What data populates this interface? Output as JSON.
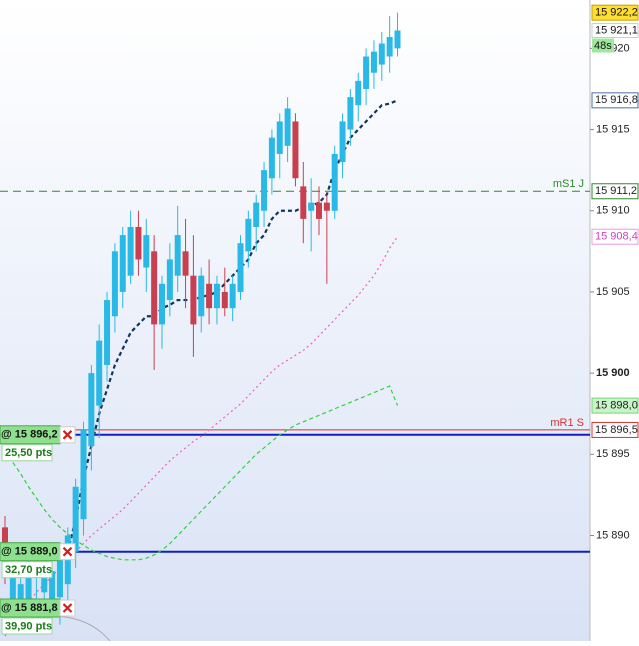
{
  "chart_data": {
    "type": "candlestick",
    "ylim": [
      15883.5,
      15922.98
    ],
    "yticks": [
      {
        "value": 15890,
        "label": "15 890"
      },
      {
        "value": 15895,
        "label": "15 895"
      },
      {
        "value": 15900,
        "label": "15 900"
      },
      {
        "value": 15905,
        "label": "15 905"
      },
      {
        "value": 15910,
        "label": "15 910"
      },
      {
        "value": 15915,
        "label": "15 915"
      },
      {
        "value": 15920,
        "label": "15 920"
      }
    ],
    "up_color": "#2ab8e6",
    "down_color": "#c8404f",
    "open": [
      15890.5,
      15886,
      15885.5,
      15886,
      15887.5,
      15886.5,
      15886,
      15886.2,
      15887,
      15889,
      15891,
      15895.5,
      15898,
      15900.5,
      15903.5,
      15905,
      15906,
      15909,
      15906.5,
      15907.5,
      15903,
      15904.5,
      15906,
      15907.5,
      15906,
      15903.5,
      15905.5,
      15904,
      15905,
      15904,
      15905,
      15907.5,
      15909,
      15910,
      15912,
      15913.5,
      15914,
      15915.5,
      15911.5,
      15910,
      15910.5,
      15910.5,
      15910,
      15913,
      15915,
      15916.5,
      15917.5,
      15918.5,
      15919,
      15919.5,
      15920
    ],
    "high": [
      15891.2,
      15888.5,
      15888,
      15889,
      15889.5,
      15889,
      15888.5,
      15889.2,
      15890.5,
      15893.5,
      15897,
      15900.5,
      15903,
      15905,
      15908,
      15909,
      15910,
      15910,
      15909.5,
      15908.5,
      15906,
      15908,
      15910.3,
      15909.5,
      15908.5,
      15906.5,
      15907,
      15906,
      15906.5,
      15906,
      15908.5,
      15910,
      15911,
      15913,
      15915,
      15916,
      15917,
      15916,
      15913,
      15912,
      15911.5,
      15911,
      15914,
      15916,
      15917.5,
      15918.5,
      15920,
      15920.5,
      15921,
      15922,
      15922.2
    ],
    "low": [
      15887,
      15884.5,
      15884,
      15884.5,
      15885,
      15885.5,
      15884.8,
      15884.5,
      15886,
      15888,
      15890,
      15894,
      15896,
      15899.5,
      15902.5,
      15904,
      15905.5,
      15906,
      15905,
      15900.2,
      15901.5,
      15903.5,
      15905,
      15904,
      15901,
      15902.5,
      15903,
      15903,
      15903.5,
      15903.2,
      15904.5,
      15906.5,
      15907.5,
      15909,
      15911,
      15912,
      15913,
      15911.5,
      15908,
      15907.5,
      15908.5,
      15905.5,
      15909.5,
      15912,
      15914,
      15915.5,
      15916.5,
      15917.5,
      15918,
      15918.5,
      15919.5
    ],
    "close": [
      15888,
      15887.5,
      15887,
      15888.5,
      15888.8,
      15888.5,
      15887.8,
      15888.6,
      15890,
      15893,
      15896.5,
      15900,
      15902,
      15904.5,
      15907.5,
      15908.5,
      15909,
      15907,
      15908.5,
      15903,
      15905.5,
      15907,
      15908.5,
      15906,
      15903,
      15906,
      15904,
      15905.5,
      15904,
      15905.5,
      15908,
      15909.5,
      15910.5,
      15912.5,
      15914.5,
      15915.5,
      15916.3,
      15912,
      15909.5,
      15910.5,
      15909.5,
      15910,
      15913.5,
      15915.5,
      15917,
      15918,
      15919.5,
      15919.8,
      15920.3,
      15920.7,
      15921.1
    ],
    "moving_averages": [
      {
        "color": "#10365e",
        "dash": "4 3",
        "width": 2.2,
        "last_label": "15 916,8",
        "values": [
          null,
          null,
          null,
          null,
          null,
          null,
          null,
          null,
          15889,
          15891,
          15893.5,
          15895.5,
          15897.5,
          15899,
          15900.5,
          15901.5,
          15902.5,
          15903,
          15903.5,
          15903.5,
          15904,
          15904.2,
          15904.5,
          15904.5,
          15904.5,
          15904.7,
          15904.8,
          15905,
          15905.5,
          15906,
          15906.5,
          15907,
          15908,
          15908.5,
          15909.5,
          15910,
          15910,
          15910,
          15910.2,
          15910.3,
          15910.5,
          15911,
          15912.5,
          15913.5,
          15914.5,
          15915,
          15915.5,
          15916,
          15916.5,
          15916.6,
          15916.8
        ]
      },
      {
        "color": "#f060c0",
        "dash": "2 3",
        "width": 1.2,
        "last_label": "15 908,4",
        "values": [
          15883.8,
          15884.5,
          15885.2,
          15885.9,
          15886.5,
          15887,
          15887.5,
          15888,
          15888.5,
          15889,
          15889.5,
          15890,
          15890.4,
          15890.8,
          15891.2,
          15891.6,
          15892.1,
          15892.6,
          15893.1,
          15893.6,
          15894.1,
          15894.6,
          15895,
          15895.4,
          15895.8,
          15896.1,
          15896.5,
          15896.9,
          15897.3,
          15897.7,
          15898.1,
          15898.6,
          15899.1,
          15899.6,
          15900.1,
          15900.5,
          15900.8,
          15901.1,
          15901.4,
          15901.8,
          15902.3,
          15902.8,
          15903.3,
          15903.8,
          15904.3,
          15904.8,
          15905.4,
          15906,
          15906.8,
          15907.7,
          15908.4
        ]
      },
      {
        "color": "#30d040",
        "dash": "4 3",
        "width": 1.2,
        "last_label": "15 898,0",
        "values": [
          15895.2,
          15894.5,
          15893.8,
          15893,
          15892.3,
          15891.6,
          15891,
          15890.5,
          15890.1,
          15889.7,
          15889.4,
          15889.1,
          15888.9,
          15888.7,
          15888.6,
          15888.5,
          15888.5,
          15888.5,
          15888.6,
          15888.8,
          15889.1,
          15889.5,
          15890,
          15890.5,
          15891,
          15891.5,
          15892,
          15892.5,
          15893,
          15893.5,
          15894,
          15894.5,
          15895,
          15895.4,
          15895.8,
          15896.2,
          15896.5,
          15896.8,
          15897,
          15897.2,
          15897.4,
          15897.6,
          15897.8,
          15898,
          15898.2,
          15898.4,
          15898.6,
          15898.8,
          15899,
          15899.2,
          15898
        ]
      }
    ],
    "levels": [
      {
        "name": "mS1 J",
        "value": 15911.2,
        "label": "15 911,2",
        "color": "#2a8a2a"
      },
      {
        "name": "mR1 S",
        "value": 15896.5,
        "label": "15 896,5",
        "color": "#d83030"
      }
    ],
    "orders": [
      {
        "label": "@ 15 896,2",
        "value": 15896.2,
        "points": "25,50 pts"
      },
      {
        "label": "@ 15 889,0",
        "value": 15889.0,
        "points": "32,70 pts"
      },
      {
        "label": "@ 15 881,8",
        "value": 15881.8,
        "points": "39,90 pts"
      }
    ],
    "high_tag": {
      "value": 15922.2,
      "label": "15 922,2"
    },
    "price_tag": {
      "value": 15921.1,
      "label": "15 921,1"
    },
    "timer": "48s"
  }
}
